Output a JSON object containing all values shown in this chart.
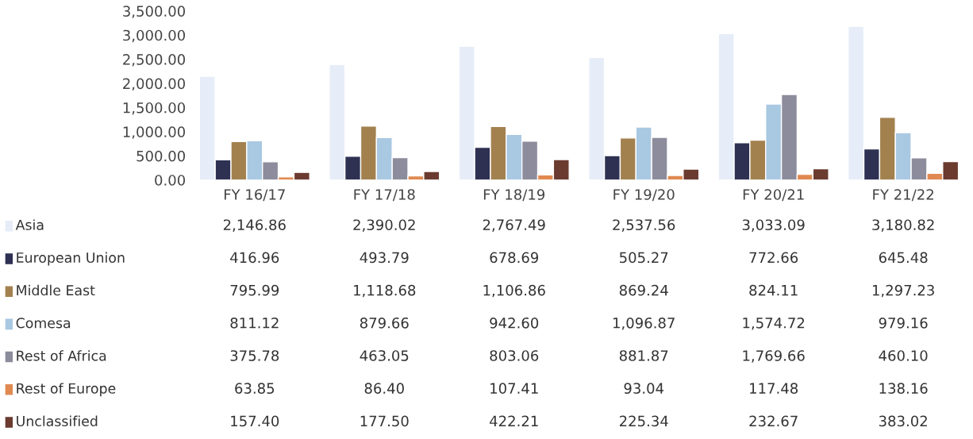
{
  "chart_data": {
    "type": "bar",
    "categories": [
      "FY 16/17",
      "FY 17/18",
      "FY 18/19",
      "FY 19/20",
      "FY 20/21",
      "FY 21/22"
    ],
    "ylim": [
      0,
      3500
    ],
    "yticks": [
      {
        "value": 0,
        "label": "0.00"
      },
      {
        "value": 500,
        "label": "500.00"
      },
      {
        "value": 1000,
        "label": "1,000.00"
      },
      {
        "value": 1500,
        "label": "1,500.00"
      },
      {
        "value": 2000,
        "label": "2,000.00"
      },
      {
        "value": 2500,
        "label": "2,500.00"
      },
      {
        "value": 3000,
        "label": "3,000.00"
      },
      {
        "value": 3500,
        "label": "3,500.00"
      }
    ],
    "grid": false,
    "legend": "bottom",
    "series": [
      {
        "name": "Asia",
        "color": "#e6edf8",
        "values": [
          2146.86,
          2390.02,
          2767.49,
          2537.56,
          3033.09,
          3180.82
        ],
        "value_labels": [
          "2,146.86",
          "2,390.02",
          "2,767.49",
          "2,537.56",
          "3,033.09",
          "3,180.82"
        ]
      },
      {
        "name": "European Union",
        "color": "#2e3152",
        "values": [
          416.96,
          493.79,
          678.69,
          505.27,
          772.66,
          645.48
        ],
        "value_labels": [
          "416.96",
          "493.79",
          "678.69",
          "505.27",
          "772.66",
          "645.48"
        ]
      },
      {
        "name": "Middle East",
        "color": "#a3814f",
        "values": [
          795.99,
          1118.68,
          1106.86,
          869.24,
          824.11,
          1297.23
        ],
        "value_labels": [
          "795.99",
          "1,118.68",
          "1,106.86",
          "869.24",
          "824.11",
          "1,297.23"
        ]
      },
      {
        "name": "Comesa",
        "color": "#a9c8e2",
        "values": [
          811.12,
          879.66,
          942.6,
          1096.87,
          1574.72,
          979.16
        ],
        "value_labels": [
          "811.12",
          "879.66",
          "942.60",
          "1,096.87",
          "1,574.72",
          "979.16"
        ]
      },
      {
        "name": "Rest of Africa",
        "color": "#8c8c9c",
        "values": [
          375.78,
          463.05,
          803.06,
          881.87,
          1769.66,
          460.1
        ],
        "value_labels": [
          "375.78",
          "463.05",
          "803.06",
          "881.87",
          "1,769.66",
          "460.10"
        ]
      },
      {
        "name": "Rest of Europe",
        "color": "#e08a52",
        "values": [
          63.85,
          86.4,
          107.41,
          93.04,
          117.48,
          138.16
        ],
        "value_labels": [
          "63.85",
          "86.40",
          "107.41",
          "93.04",
          "117.48",
          "138.16"
        ]
      },
      {
        "name": "Unclassified",
        "color": "#6b3b30",
        "values": [
          157.4,
          177.5,
          422.21,
          225.34,
          232.67,
          383.02
        ],
        "value_labels": [
          "157.40",
          "177.50",
          "422.21",
          "225.34",
          "232.67",
          "383.02"
        ]
      }
    ]
  }
}
